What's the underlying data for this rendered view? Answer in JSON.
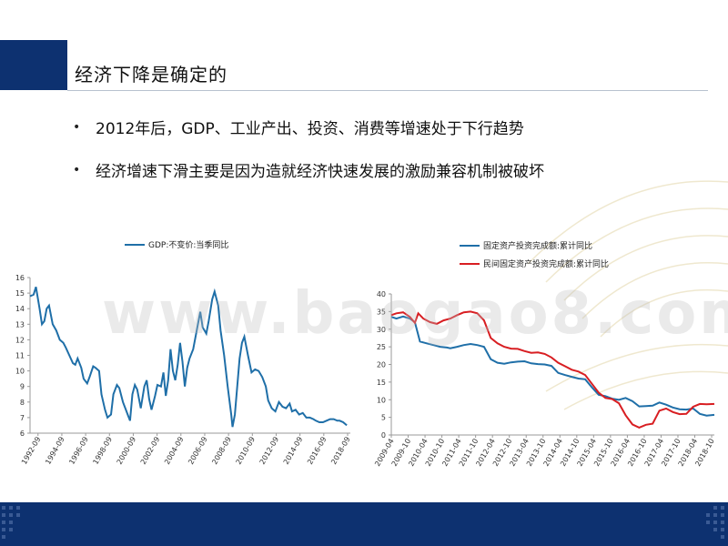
{
  "slide": {
    "title": "经济下降是确定的",
    "bullets": [
      "2012年后，GDP、工业产出、投资、消费等增速处于下行趋势",
      "经济增速下滑主要是因为造就经济快速发展的激励兼容机制被破坏"
    ],
    "watermark": "www.baogao8.com"
  },
  "colors": {
    "header": "#0d3170",
    "series_blue": "#1f6fa8",
    "series_red": "#d81e22"
  },
  "chart_data": [
    {
      "type": "line",
      "x": [
        "1992-09",
        "1994-09",
        "1996-09",
        "1998-09",
        "2000-09",
        "2002-09",
        "2004-09",
        "2006-09",
        "2008-09",
        "2010-09",
        "2012-09",
        "2014-09",
        "2016-09",
        "2018-09"
      ],
      "xlabels": [
        "1992-09",
        "1994-09",
        "1996-09",
        "1998-09",
        "2000-09",
        "2002-09",
        "2004-09",
        "2006-09",
        "2008-09",
        "2010-09",
        "2012-09",
        "2014-09",
        "2016-09",
        "2018-09"
      ],
      "yticks": [
        6,
        7,
        8,
        9,
        10,
        11,
        12,
        13,
        14,
        15,
        16
      ],
      "ylim": [
        6,
        16
      ],
      "series": [
        {
          "name": "GDP:不变价:当季同比",
          "color": "#1f6fa8",
          "points": [
            [
              1992.0,
              14.8
            ],
            [
              1992.3,
              14.9
            ],
            [
              1992.5,
              15.4
            ],
            [
              1992.8,
              14.0
            ],
            [
              1993.0,
              13.0
            ],
            [
              1993.2,
              13.2
            ],
            [
              1993.4,
              14.0
            ],
            [
              1993.6,
              14.2
            ],
            [
              1993.9,
              13.0
            ],
            [
              1994.2,
              12.6
            ],
            [
              1994.5,
              12.0
            ],
            [
              1994.8,
              11.8
            ],
            [
              1995.0,
              11.5
            ],
            [
              1995.3,
              11.0
            ],
            [
              1995.6,
              10.5
            ],
            [
              1995.8,
              10.4
            ],
            [
              1996.0,
              10.8
            ],
            [
              1996.3,
              10.2
            ],
            [
              1996.5,
              9.5
            ],
            [
              1996.8,
              9.2
            ],
            [
              1997.0,
              9.6
            ],
            [
              1997.3,
              10.3
            ],
            [
              1997.5,
              10.2
            ],
            [
              1997.8,
              10.0
            ],
            [
              1998.0,
              8.5
            ],
            [
              1998.3,
              7.5
            ],
            [
              1998.5,
              7.0
            ],
            [
              1998.8,
              7.2
            ],
            [
              1999.0,
              8.5
            ],
            [
              1999.3,
              9.1
            ],
            [
              1999.5,
              8.9
            ],
            [
              1999.8,
              8.0
            ],
            [
              2000.0,
              7.6
            ],
            [
              2000.2,
              7.2
            ],
            [
              2000.4,
              6.8
            ],
            [
              2000.6,
              8.5
            ],
            [
              2000.8,
              9.1
            ],
            [
              2001.0,
              8.8
            ],
            [
              2001.3,
              7.6
            ],
            [
              2001.6,
              9.0
            ],
            [
              2001.8,
              9.4
            ],
            [
              2002.0,
              8.2
            ],
            [
              2002.2,
              7.5
            ],
            [
              2002.5,
              8.4
            ],
            [
              2002.7,
              9.1
            ],
            [
              2003.0,
              9.0
            ],
            [
              2003.2,
              9.9
            ],
            [
              2003.4,
              8.4
            ],
            [
              2003.6,
              9.4
            ],
            [
              2003.8,
              11.4
            ],
            [
              2004.0,
              10.0
            ],
            [
              2004.2,
              9.4
            ],
            [
              2004.4,
              10.4
            ],
            [
              2004.6,
              11.8
            ],
            [
              2004.8,
              10.6
            ],
            [
              2005.0,
              9.0
            ],
            [
              2005.2,
              10.2
            ],
            [
              2005.4,
              10.8
            ],
            [
              2005.7,
              11.4
            ],
            [
              2006.0,
              12.6
            ],
            [
              2006.3,
              13.8
            ],
            [
              2006.5,
              12.8
            ],
            [
              2006.8,
              12.4
            ],
            [
              2007.0,
              13.2
            ],
            [
              2007.3,
              14.6
            ],
            [
              2007.5,
              15.1
            ],
            [
              2007.8,
              14.2
            ],
            [
              2008.0,
              12.6
            ],
            [
              2008.3,
              11.0
            ],
            [
              2008.6,
              9.0
            ],
            [
              2008.9,
              7.2
            ],
            [
              2009.0,
              6.4
            ],
            [
              2009.2,
              7.2
            ],
            [
              2009.4,
              9.0
            ],
            [
              2009.6,
              10.8
            ],
            [
              2009.8,
              11.8
            ],
            [
              2010.0,
              12.2
            ],
            [
              2010.3,
              11.0
            ],
            [
              2010.6,
              9.9
            ],
            [
              2010.9,
              10.1
            ],
            [
              2011.2,
              10.0
            ],
            [
              2011.5,
              9.6
            ],
            [
              2011.8,
              9.0
            ],
            [
              2012.0,
              8.1
            ],
            [
              2012.3,
              7.6
            ],
            [
              2012.6,
              7.4
            ],
            [
              2012.9,
              8.0
            ],
            [
              2013.2,
              7.7
            ],
            [
              2013.5,
              7.6
            ],
            [
              2013.8,
              7.9
            ],
            [
              2014.0,
              7.4
            ],
            [
              2014.3,
              7.5
            ],
            [
              2014.6,
              7.2
            ],
            [
              2014.9,
              7.3
            ],
            [
              2015.2,
              7.0
            ],
            [
              2015.5,
              7.0
            ],
            [
              2015.8,
              6.9
            ],
            [
              2016.0,
              6.8
            ],
            [
              2016.3,
              6.7
            ],
            [
              2016.6,
              6.7
            ],
            [
              2016.9,
              6.8
            ],
            [
              2017.2,
              6.9
            ],
            [
              2017.5,
              6.9
            ],
            [
              2017.8,
              6.8
            ],
            [
              2018.0,
              6.8
            ],
            [
              2018.3,
              6.7
            ],
            [
              2018.6,
              6.5
            ]
          ]
        }
      ]
    },
    {
      "type": "line",
      "xlabels": [
        "2009-04",
        "2009-10",
        "2010-04",
        "2010-10",
        "2011-04",
        "2011-10",
        "2012-04",
        "2012-10",
        "2013-04",
        "2013-10",
        "2014-04",
        "2014-10",
        "2015-04",
        "2015-10",
        "2016-04",
        "2016-10",
        "2017-04",
        "2017-10",
        "2018-04",
        "2018-10"
      ],
      "yticks": [
        0,
        5,
        10,
        15,
        20,
        25,
        30,
        35,
        40
      ],
      "ylim": [
        0,
        40
      ],
      "series": [
        {
          "name": "固定资产投资完成额:累计同比",
          "color": "#1f6fa8",
          "points": [
            [
              2009.25,
              33.5
            ],
            [
              2009.4,
              33.0
            ],
            [
              2009.6,
              33.6
            ],
            [
              2009.8,
              33.0
            ],
            [
              2009.95,
              32.0
            ],
            [
              2010.1,
              26.5
            ],
            [
              2010.3,
              26.0
            ],
            [
              2010.5,
              25.5
            ],
            [
              2010.7,
              25.0
            ],
            [
              2010.9,
              24.8
            ],
            [
              2011.0,
              24.6
            ],
            [
              2011.2,
              25.0
            ],
            [
              2011.4,
              25.5
            ],
            [
              2011.6,
              25.8
            ],
            [
              2011.8,
              25.5
            ],
            [
              2012.0,
              25.0
            ],
            [
              2012.2,
              21.5
            ],
            [
              2012.4,
              20.5
            ],
            [
              2012.6,
              20.2
            ],
            [
              2012.8,
              20.6
            ],
            [
              2013.0,
              20.8
            ],
            [
              2013.2,
              20.9
            ],
            [
              2013.4,
              20.3
            ],
            [
              2013.6,
              20.1
            ],
            [
              2013.8,
              20.0
            ],
            [
              2014.0,
              19.6
            ],
            [
              2014.2,
              17.6
            ],
            [
              2014.4,
              17.0
            ],
            [
              2014.6,
              16.5
            ],
            [
              2014.8,
              16.0
            ],
            [
              2015.0,
              15.8
            ],
            [
              2015.2,
              13.5
            ],
            [
              2015.4,
              11.4
            ],
            [
              2015.6,
              11.0
            ],
            [
              2015.8,
              10.3
            ],
            [
              2016.0,
              10.0
            ],
            [
              2016.2,
              10.5
            ],
            [
              2016.4,
              9.6
            ],
            [
              2016.6,
              8.1
            ],
            [
              2016.8,
              8.2
            ],
            [
              2017.0,
              8.3
            ],
            [
              2017.2,
              9.2
            ],
            [
              2017.4,
              8.6
            ],
            [
              2017.6,
              7.8
            ],
            [
              2017.8,
              7.3
            ],
            [
              2018.0,
              7.2
            ],
            [
              2018.2,
              7.5
            ],
            [
              2018.4,
              6.0
            ],
            [
              2018.6,
              5.5
            ],
            [
              2018.83,
              5.7
            ]
          ]
        },
        {
          "name": "民间固定资产投资完成额:累计同比",
          "color": "#d81e22",
          "points": [
            [
              2009.25,
              34.0
            ],
            [
              2009.4,
              34.5
            ],
            [
              2009.6,
              34.8
            ],
            [
              2009.8,
              33.5
            ],
            [
              2009.95,
              31.8
            ],
            [
              2010.05,
              34.5
            ],
            [
              2010.2,
              33.0
            ],
            [
              2010.4,
              32.0
            ],
            [
              2010.6,
              31.5
            ],
            [
              2010.8,
              32.5
            ],
            [
              2011.0,
              33.0
            ],
            [
              2011.2,
              34.0
            ],
            [
              2011.4,
              34.8
            ],
            [
              2011.6,
              35.0
            ],
            [
              2011.8,
              34.5
            ],
            [
              2012.0,
              32.5
            ],
            [
              2012.2,
              27.5
            ],
            [
              2012.4,
              26.0
            ],
            [
              2012.6,
              25.0
            ],
            [
              2012.8,
              24.5
            ],
            [
              2013.0,
              24.4
            ],
            [
              2013.2,
              23.8
            ],
            [
              2013.4,
              23.3
            ],
            [
              2013.6,
              23.4
            ],
            [
              2013.8,
              23.0
            ],
            [
              2014.0,
              22.0
            ],
            [
              2014.2,
              20.5
            ],
            [
              2014.4,
              19.5
            ],
            [
              2014.6,
              18.5
            ],
            [
              2014.8,
              18.0
            ],
            [
              2015.0,
              17.0
            ],
            [
              2015.2,
              14.5
            ],
            [
              2015.4,
              12.0
            ],
            [
              2015.6,
              10.5
            ],
            [
              2015.8,
              10.2
            ],
            [
              2016.0,
              9.0
            ],
            [
              2016.2,
              5.6
            ],
            [
              2016.4,
              3.0
            ],
            [
              2016.6,
              2.1
            ],
            [
              2016.8,
              2.9
            ],
            [
              2017.0,
              3.2
            ],
            [
              2017.2,
              6.9
            ],
            [
              2017.4,
              7.5
            ],
            [
              2017.6,
              6.5
            ],
            [
              2017.8,
              5.9
            ],
            [
              2018.0,
              6.0
            ],
            [
              2018.2,
              8.0
            ],
            [
              2018.4,
              8.8
            ],
            [
              2018.6,
              8.7
            ],
            [
              2018.83,
              8.8
            ]
          ]
        }
      ]
    }
  ]
}
